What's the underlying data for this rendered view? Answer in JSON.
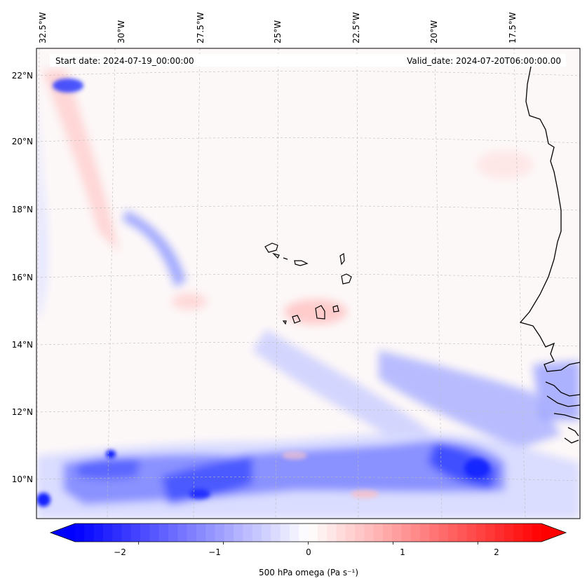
{
  "header": {
    "start_date": "Start date: 2024-07-19_00:00:00",
    "valid_date": "Valid_date: 2024-07-20T06:00:00.00"
  },
  "axes": {
    "lon_labels": [
      "32.5°W",
      "30°W",
      "27.5°W",
      "25°W",
      "22.5°W",
      "20°W",
      "17.5°W"
    ],
    "lat_labels": [
      "22°N",
      "20°N",
      "18°N",
      "16°N",
      "14°N",
      "12°N",
      "10°N"
    ]
  },
  "colorbar": {
    "label": "500 hPa omega (Pa s⁻¹)",
    "ticks": [
      "−2",
      "−1",
      "0",
      "1",
      "2"
    ],
    "tick_values": [
      -2,
      -1,
      0,
      1,
      2
    ],
    "range": [
      -2.75,
      2.75
    ],
    "colormap": "bwr",
    "colors": {
      "negative": "#0000ff",
      "zero": "#ffffff",
      "positive": "#ff0000"
    }
  },
  "map": {
    "projection": "lambert-conformal",
    "gridlines": true,
    "features": [
      "coastline-west-africa",
      "cape-verde-islands"
    ]
  }
}
